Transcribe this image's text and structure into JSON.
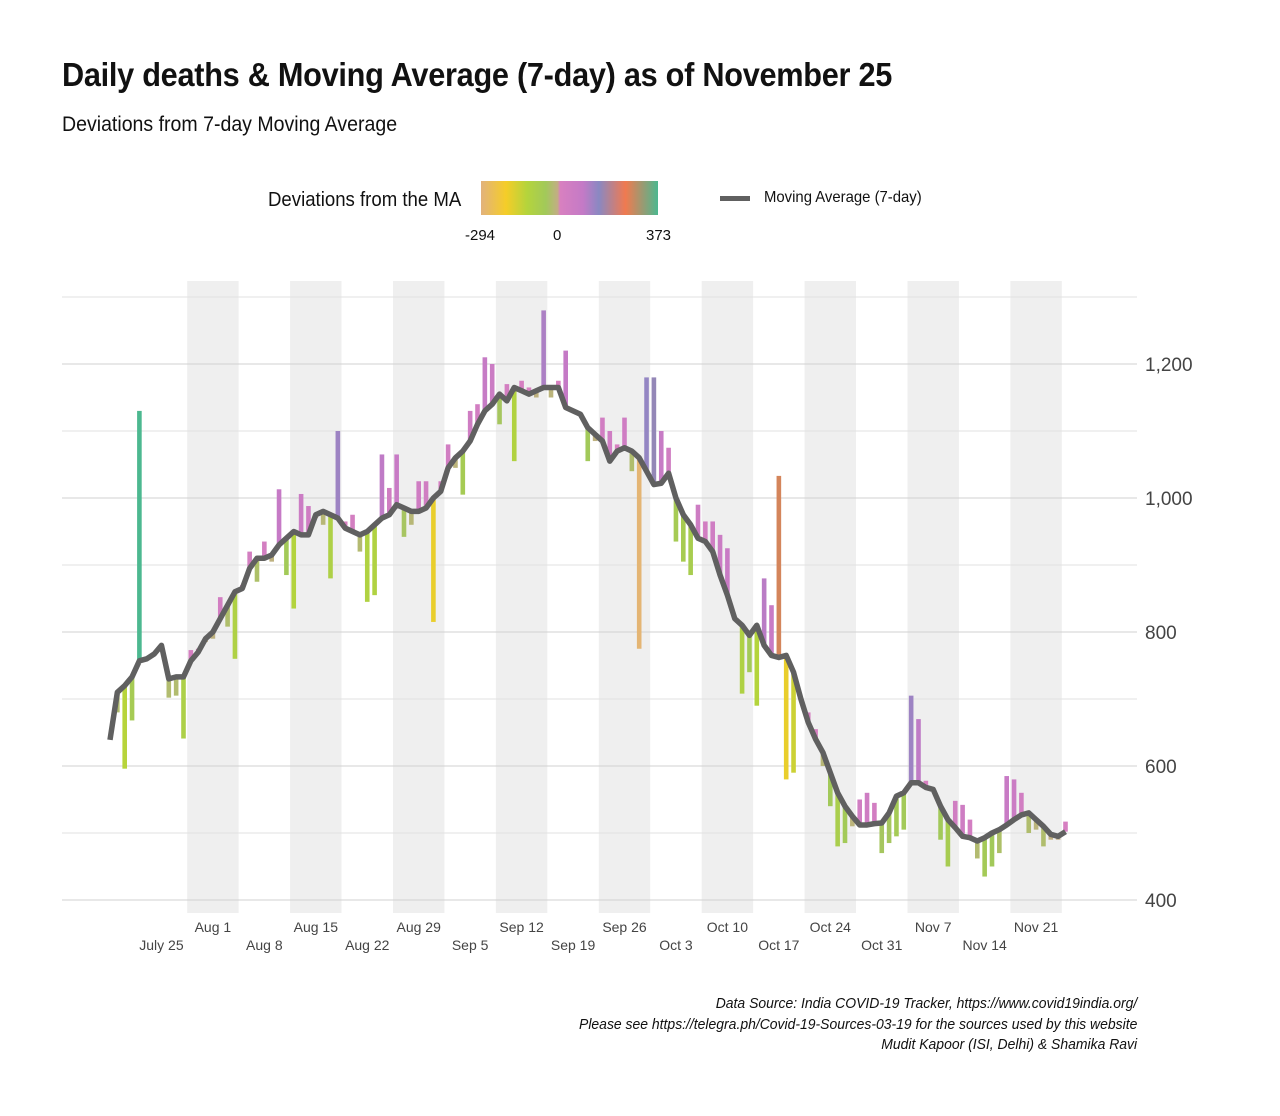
{
  "title": "Daily deaths & Moving Average (7-day) as of November 25",
  "subtitle": "Deviations from 7-day Moving Average",
  "legend": {
    "color_title": "Deviations from the MA",
    "color_min": "-294",
    "color_mid": "0",
    "color_max": "373",
    "line_label": "Moving Average (7-day)",
    "colormap": [
      {
        "value": -294,
        "color": "#e2b27c"
      },
      {
        "value": -200,
        "color": "#f5cd28"
      },
      {
        "value": -120,
        "color": "#b4d43c"
      },
      {
        "value": -50,
        "color": "#a2c95a"
      },
      {
        "value": -5,
        "color": "#c2ae84"
      },
      {
        "value": 5,
        "color": "#d880c0"
      },
      {
        "value": 90,
        "color": "#c47ac6"
      },
      {
        "value": 150,
        "color": "#8a88c2"
      },
      {
        "value": 250,
        "color": "#f07a50"
      },
      {
        "value": 373,
        "color": "#4cb890"
      }
    ],
    "line_color": "#606060"
  },
  "captions": [
    "Data Source: India COVID-19 Tracker, https://www.covid19india.org/",
    "Please see https://telegra.ph/Covid-19-Sources-03-19 for the sources used by this website",
    "Mudit Kapoor (ISI, Delhi) & Shamika Ravi"
  ],
  "chart_data": {
    "type": "bar+line",
    "title": "Daily deaths & Moving Average (7-day) as of November 25",
    "subtitle": "Deviations from 7-day Moving Average",
    "ylim": [
      400,
      1300
    ],
    "yticks": [
      400,
      600,
      800,
      1000,
      1200
    ],
    "ytick_labels": [
      "400",
      "600",
      "800",
      "1,000",
      "1,200"
    ],
    "y_axis_position": "right",
    "grid": true,
    "shaded_weeks": "alternating",
    "xticks": [
      {
        "label": "July 25",
        "date": "Jul 25",
        "row": 2
      },
      {
        "label": "Aug 1",
        "date": "Aug 1",
        "row": 1
      },
      {
        "label": "Aug 8",
        "date": "Aug 8",
        "row": 2
      },
      {
        "label": "Aug 15",
        "date": "Aug 15",
        "row": 1
      },
      {
        "label": "Aug 22",
        "date": "Aug 22",
        "row": 2
      },
      {
        "label": "Aug 29",
        "date": "Aug 29",
        "row": 1
      },
      {
        "label": "Sep 5",
        "date": "Sep 5",
        "row": 2
      },
      {
        "label": "Sep 12",
        "date": "Sep 12",
        "row": 1
      },
      {
        "label": "Sep 19",
        "date": "Sep 19",
        "row": 2
      },
      {
        "label": "Sep 26",
        "date": "Sep 26",
        "row": 1
      },
      {
        "label": "Oct 3",
        "date": "Oct 3",
        "row": 2
      },
      {
        "label": "Oct 10",
        "date": "Oct 10",
        "row": 1
      },
      {
        "label": "Oct 17",
        "date": "Oct 17",
        "row": 2
      },
      {
        "label": "Oct 24",
        "date": "Oct 24",
        "row": 1
      },
      {
        "label": "Oct 31",
        "date": "Oct 31",
        "row": 2
      },
      {
        "label": "Nov 7",
        "date": "Nov 7",
        "row": 1
      },
      {
        "label": "Nov 14",
        "date": "Nov 14",
        "row": 2
      },
      {
        "label": "Nov 21",
        "date": "Nov 21",
        "row": 1
      }
    ],
    "months": [
      {
        "month": "Jul",
        "first_day": 18,
        "daily": [
          639,
          680,
          596,
          668,
          1130,
          762,
          770,
          782,
          702,
          705,
          641,
          773,
          775,
          785
        ],
        "moving_average": [
          639,
          710,
          720,
          733,
          757,
          760,
          767,
          780,
          730,
          733,
          733,
          757,
          770,
          790
        ]
      },
      {
        "month": "Aug",
        "first_day": 1,
        "daily": [
          790,
          852,
          808,
          760,
          870,
          920,
          875,
          935,
          905,
          1013,
          885,
          835,
          1006,
          988,
          970,
          960,
          880,
          1100,
          965,
          975,
          920,
          845,
          855,
          1065,
          1015,
          1065,
          942,
          960,
          1025,
          1025,
          815
        ],
        "moving_average": [
          800,
          820,
          840,
          860,
          865,
          895,
          910,
          910,
          915,
          930,
          940,
          950,
          945,
          945,
          975,
          980,
          975,
          970,
          955,
          950,
          945,
          950,
          960,
          970,
          975,
          990,
          985,
          980,
          980,
          985,
          1000
        ]
      },
      {
        "month": "Sep",
        "first_day": 1,
        "daily": [
          1025,
          1080,
          1045,
          1005,
          1130,
          1140,
          1210,
          1200,
          1110,
          1170,
          1055,
          1175,
          1165,
          1150,
          1280,
          1150,
          1175,
          1220,
          1130,
          1125,
          1055,
          1085,
          1120,
          1100,
          1080,
          1120,
          1040,
          775,
          1180,
          1180
        ],
        "moving_average": [
          1010,
          1045,
          1060,
          1070,
          1085,
          1110,
          1130,
          1140,
          1155,
          1145,
          1165,
          1160,
          1155,
          1160,
          1165,
          1165,
          1165,
          1135,
          1130,
          1125,
          1105,
          1095,
          1085,
          1055,
          1070,
          1075,
          1070,
          1060,
          1040,
          1020
        ]
      },
      {
        "month": "Oct",
        "first_day": 1,
        "daily": [
          1100,
          1075,
          935,
          905,
          885,
          990,
          965,
          965,
          945,
          925,
          820,
          708,
          740,
          690,
          880,
          840,
          1033,
          580,
          590,
          700,
          680,
          655,
          600,
          540,
          480,
          485,
          510,
          550,
          560,
          545,
          470
        ],
        "moving_average": [
          1022,
          1037,
          1000,
          975,
          960,
          940,
          935,
          920,
          885,
          855,
          820,
          810,
          795,
          810,
          780,
          765,
          762,
          765,
          740,
          700,
          665,
          640,
          620,
          590,
          560,
          540,
          525,
          512,
          512,
          514,
          515
        ]
      },
      {
        "month": "Nov",
        "first_day": 1,
        "daily": [
          485,
          495,
          505,
          705,
          670,
          578,
          565,
          490,
          450,
          548,
          542,
          520,
          462,
          435,
          450,
          470,
          585,
          580,
          560,
          500,
          505,
          480,
          490,
          490,
          517
        ],
        "moving_average": [
          530,
          555,
          560,
          575,
          575,
          568,
          565,
          540,
          520,
          508,
          495,
          493,
          488,
          493,
          500,
          505,
          512,
          520,
          527,
          530,
          520,
          510,
          498,
          495,
          502
        ]
      }
    ]
  }
}
